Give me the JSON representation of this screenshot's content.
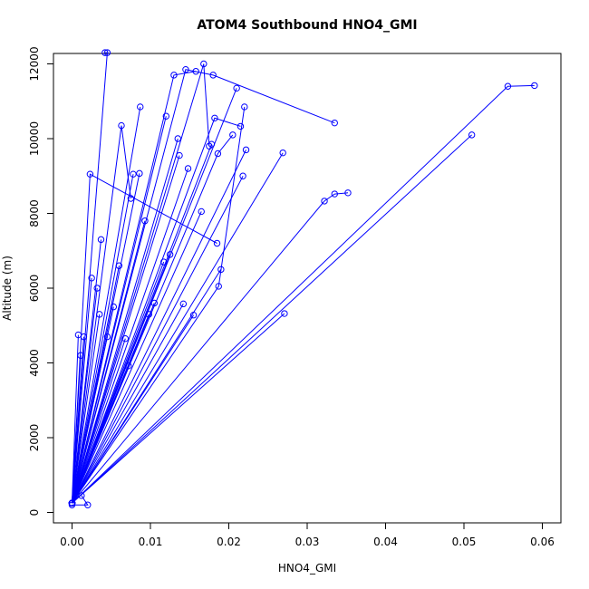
{
  "chart_data": {
    "type": "line",
    "title": "ATOM4 Southbound HNO4_GMI",
    "xlabel": "HNO4_GMI",
    "ylabel": "Altitude (m)",
    "xlim": [
      0.0,
      0.06
    ],
    "ylim": [
      0,
      12000
    ],
    "x_ticks": [
      "0.00",
      "0.01",
      "0.02",
      "0.03",
      "0.04",
      "0.05",
      "0.06"
    ],
    "y_ticks": [
      "0",
      "2000",
      "4000",
      "6000",
      "8000",
      "10000",
      "12000"
    ],
    "grid": false,
    "legend": "none",
    "series_color": "#0000ff",
    "series": [
      {
        "x": [
          0.0,
          0.0045,
          0.0042
        ],
        "y": [
          250,
          12300,
          12300
        ]
      },
      {
        "x": [
          0.0,
          0.0145,
          0.018,
          0.0335
        ],
        "y": [
          250,
          11850,
          11700,
          10420
        ]
      },
      {
        "x": [
          0.0,
          0.0168,
          0.0175
        ],
        "y": [
          250,
          12000,
          9800
        ]
      },
      {
        "x": [
          0.0,
          0.013,
          0.0158
        ],
        "y": [
          250,
          11700,
          11800
        ]
      },
      {
        "x": [
          0.0,
          0.0556,
          0.059
        ],
        "y": [
          250,
          11400,
          11420
        ]
      },
      {
        "x": [
          0.0,
          0.051
        ],
        "y": [
          250,
          10100
        ]
      },
      {
        "x": [
          0.0,
          0.0023,
          0.0185
        ],
        "y": [
          250,
          9050,
          7200
        ]
      },
      {
        "x": [
          0.0,
          0.0063,
          0.0075
        ],
        "y": [
          250,
          10350,
          8400
        ]
      },
      {
        "x": [
          0.0,
          0.0087
        ],
        "y": [
          250,
          10850
        ]
      },
      {
        "x": [
          0.0,
          0.012
        ],
        "y": [
          250,
          10600
        ]
      },
      {
        "x": [
          0.0,
          0.0187,
          0.022
        ],
        "y": [
          250,
          6050,
          10850
        ]
      },
      {
        "x": [
          0.0,
          0.021
        ],
        "y": [
          250,
          11350
        ]
      },
      {
        "x": [
          0.0,
          0.0135
        ],
        "y": [
          250,
          10000
        ]
      },
      {
        "x": [
          0.0,
          0.0186,
          0.0205
        ],
        "y": [
          250,
          9600,
          10100
        ]
      },
      {
        "x": [
          0.0,
          0.0182,
          0.0215
        ],
        "y": [
          250,
          10550,
          10330
        ]
      },
      {
        "x": [
          0.0,
          0.0178
        ],
        "y": [
          250,
          9850
        ]
      },
      {
        "x": [
          0.0,
          0.0222
        ],
        "y": [
          250,
          9700
        ]
      },
      {
        "x": [
          0.0,
          0.0218
        ],
        "y": [
          250,
          9000
        ]
      },
      {
        "x": [
          0.0,
          0.0269
        ],
        "y": [
          250,
          9620
        ]
      },
      {
        "x": [
          0.0,
          0.0322,
          0.0335,
          0.0352
        ],
        "y": [
          250,
          8330,
          8520,
          8550
        ]
      },
      {
        "x": [
          0.0,
          0.019
        ],
        "y": [
          250,
          6500
        ]
      },
      {
        "x": [
          0.0,
          0.0271
        ],
        "y": [
          250,
          5320
        ]
      },
      {
        "x": [
          0.0,
          0.0155
        ],
        "y": [
          250,
          5280
        ]
      },
      {
        "x": [
          0.0,
          0.0142
        ],
        "y": [
          250,
          5580
        ]
      },
      {
        "x": [
          0.0,
          0.0165
        ],
        "y": [
          250,
          8050
        ]
      },
      {
        "x": [
          0.0,
          0.0137
        ],
        "y": [
          250,
          9550
        ]
      },
      {
        "x": [
          0.0,
          0.0105
        ],
        "y": [
          250,
          5600
        ]
      },
      {
        "x": [
          0.0,
          0.0117
        ],
        "y": [
          250,
          6700
        ]
      },
      {
        "x": [
          0.0,
          0.0078
        ],
        "y": [
          250,
          9050
        ]
      },
      {
        "x": [
          0.0,
          0.0086
        ],
        "y": [
          250,
          9070
        ]
      },
      {
        "x": [
          0.0,
          0.0037
        ],
        "y": [
          250,
          7300
        ]
      },
      {
        "x": [
          0.0,
          0.0045
        ],
        "y": [
          250,
          4700
        ]
      },
      {
        "x": [
          0.0,
          0.0068
        ],
        "y": [
          250,
          4650
        ]
      },
      {
        "x": [
          0.0,
          0.0072
        ],
        "y": [
          250,
          3920
        ]
      },
      {
        "x": [
          0.0,
          0.0025
        ],
        "y": [
          250,
          6270
        ]
      },
      {
        "x": [
          0.0,
          0.0032
        ],
        "y": [
          250,
          6000
        ]
      },
      {
        "x": [
          0.0,
          0.006
        ],
        "y": [
          250,
          6600
        ]
      },
      {
        "x": [
          0.0,
          0.0093
        ],
        "y": [
          250,
          7800
        ]
      },
      {
        "x": [
          0.0,
          0.0053
        ],
        "y": [
          250,
          5500
        ]
      },
      {
        "x": [
          0.0,
          0.0011
        ],
        "y": [
          250,
          4200
        ]
      },
      {
        "x": [
          0.0,
          0.0008
        ],
        "y": [
          250,
          4750
        ]
      },
      {
        "x": [
          0.0,
          0.0015
        ],
        "y": [
          250,
          4700
        ]
      },
      {
        "x": [
          0.0,
          0.0098
        ],
        "y": [
          250,
          5300
        ]
      },
      {
        "x": [
          0.0,
          0.0125
        ],
        "y": [
          250,
          6900
        ]
      },
      {
        "x": [
          0.0,
          0.0148
        ],
        "y": [
          250,
          9200
        ]
      },
      {
        "x": [
          0.0,
          0.0035
        ],
        "y": [
          250,
          5300
        ]
      },
      {
        "x": [
          0.0,
          0.002,
          0.0012
        ],
        "y": [
          200,
          200,
          450
        ]
      }
    ]
  }
}
